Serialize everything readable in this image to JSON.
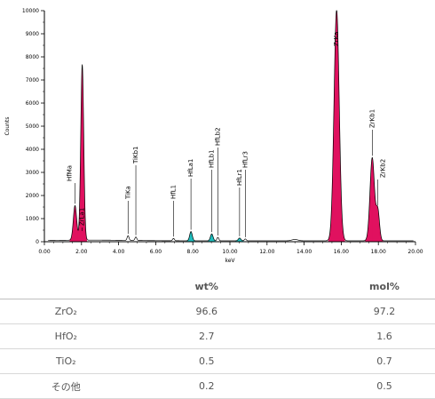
{
  "chart_data": {
    "type": "line",
    "title": "",
    "xlabel": "keV",
    "ylabel": "Counts",
    "xlim": [
      0,
      20
    ],
    "ylim": [
      0,
      10000
    ],
    "x_ticks": [
      "0.00",
      "2.00",
      "4.00",
      "6.00",
      "8.00",
      "10.00",
      "12.00",
      "14.00",
      "16.00",
      "18.00",
      "20.00"
    ],
    "y_ticks": [
      "0",
      "1000",
      "2000",
      "3000",
      "4000",
      "5000",
      "6000",
      "7000",
      "8000",
      "9000",
      "10000"
    ],
    "colors": {
      "zr_fill": "#e0115f",
      "hf_fill": "#1fbfbf",
      "outline": "#000000"
    },
    "peaks": [
      {
        "label": "HfMa",
        "x": 1.65,
        "y": 1500,
        "fill": "zr"
      },
      {
        "label": "ZrLa1",
        "x": 2.04,
        "y": 7600,
        "fill": "zr"
      },
      {
        "label": "TiKa",
        "x": 4.51,
        "y": 200,
        "fill": "none"
      },
      {
        "label": "TiKb1",
        "x": 4.93,
        "y": 150,
        "fill": "none"
      },
      {
        "label": "HfL1",
        "x": 6.96,
        "y": 100,
        "fill": "none"
      },
      {
        "label": "HfLa1",
        "x": 7.9,
        "y": 400,
        "fill": "hf"
      },
      {
        "label": "HfLb1",
        "x": 9.02,
        "y": 300,
        "fill": "hf"
      },
      {
        "label": "HfLb2",
        "x": 9.35,
        "y": 150,
        "fill": "none"
      },
      {
        "label": "HfLr1",
        "x": 10.52,
        "y": 120,
        "fill": "hf"
      },
      {
        "label": "HfLr3",
        "x": 10.83,
        "y": 80,
        "fill": "none"
      },
      {
        "label": "ZrKa",
        "x": 15.75,
        "y": 10000,
        "fill": "zr"
      },
      {
        "label": "ZrKb1",
        "x": 17.67,
        "y": 3600,
        "fill": "zr"
      },
      {
        "label": "ZrKb2",
        "x": 17.97,
        "y": 1300,
        "fill": "zr"
      }
    ]
  },
  "table": {
    "headers": [
      "",
      "wt%",
      "mol%"
    ],
    "rows": [
      {
        "compound": "ZrO₂",
        "wt": "96.6",
        "mol": "97.2"
      },
      {
        "compound": "HfO₂",
        "wt": "2.7",
        "mol": "1.6"
      },
      {
        "compound": "TiO₂",
        "wt": "0.5",
        "mol": "0.7"
      },
      {
        "compound": "その他",
        "wt": "0.2",
        "mol": "0.5"
      }
    ]
  }
}
